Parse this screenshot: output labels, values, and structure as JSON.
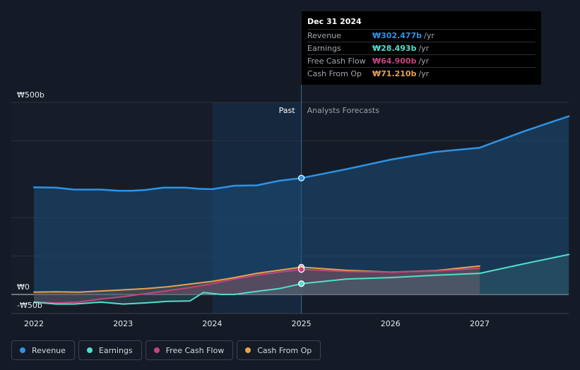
{
  "tooltip": {
    "date": "Dec 31 2024",
    "rows": [
      {
        "label": "Revenue",
        "value": "₩302.477b",
        "unit": "/yr"
      },
      {
        "label": "Earnings",
        "value": "₩28.493b",
        "unit": "/yr"
      },
      {
        "label": "Free Cash Flow",
        "value": "₩64.900b",
        "unit": "/yr"
      },
      {
        "label": "Cash From Op",
        "value": "₩71.210b",
        "unit": "/yr"
      }
    ]
  },
  "labels": {
    "past": "Past",
    "forecast": "Analysts Forecasts"
  },
  "legend": [
    {
      "label": "Revenue"
    },
    {
      "label": "Earnings"
    },
    {
      "label": "Free Cash Flow"
    },
    {
      "label": "Cash From Op"
    }
  ],
  "chart_data": {
    "type": "line",
    "ylim": [
      -50,
      500
    ],
    "xlim": [
      2021.8,
      2028.0
    ],
    "y_ticks": [
      {
        "value": 500,
        "label": "₩500b"
      },
      {
        "value": 0,
        "label": "₩0"
      },
      {
        "value": -50,
        "label": "-₩50b"
      }
    ],
    "x_ticks": [
      {
        "value": 2022,
        "label": "2022"
      },
      {
        "value": 2023,
        "label": "2023"
      },
      {
        "value": 2024,
        "label": "2024"
      },
      {
        "value": 2025,
        "label": "2025"
      },
      {
        "value": 2026,
        "label": "2026"
      },
      {
        "value": 2027,
        "label": "2027"
      }
    ],
    "past_end": 2025.0,
    "highlight_start": 2024.0,
    "colors": {
      "Revenue": "#2e93e6",
      "Earnings": "#4fe0cc",
      "Free Cash Flow": "#c2457e",
      "Cash From Op": "#e8a24c"
    },
    "series": [
      {
        "name": "Revenue",
        "x": [
          2022.0,
          2022.25,
          2022.45,
          2022.75,
          2022.95,
          2023.1,
          2023.25,
          2023.45,
          2023.7,
          2023.85,
          2024.0,
          2024.25,
          2024.5,
          2024.75,
          2025.0,
          2025.5,
          2026.0,
          2026.5,
          2027.0,
          2027.5,
          2028.0
        ],
        "y": [
          279,
          278,
          273,
          273,
          270,
          270,
          272,
          278,
          278,
          275,
          274,
          283,
          284,
          296,
          303,
          326,
          351,
          371,
          382,
          425,
          464
        ]
      },
      {
        "name": "Earnings",
        "x": [
          2022.0,
          2022.25,
          2022.45,
          2022.75,
          2023.0,
          2023.25,
          2023.5,
          2023.75,
          2023.9,
          2024.1,
          2024.25,
          2024.5,
          2024.75,
          2025.0,
          2025.5,
          2026.0,
          2026.5,
          2027.0,
          2027.5,
          2028.0
        ],
        "y": [
          -20,
          -25,
          -25,
          -20,
          -25,
          -22,
          -18,
          -17,
          5,
          0,
          0,
          8,
          15,
          28,
          40,
          44,
          50,
          55,
          80,
          104
        ]
      },
      {
        "name": "Free Cash Flow",
        "x": [
          2022.0,
          2022.25,
          2022.5,
          2022.75,
          2023.0,
          2023.25,
          2023.5,
          2023.75,
          2024.0,
          2024.25,
          2024.5,
          2024.75,
          2025.0,
          2025.5,
          2026.0,
          2026.5,
          2027.0
        ],
        "y": [
          -20,
          -22,
          -20,
          -12,
          -6,
          2,
          10,
          18,
          28,
          40,
          50,
          58,
          65,
          60,
          58,
          61,
          68
        ]
      },
      {
        "name": "Cash From Op",
        "x": [
          2022.0,
          2022.25,
          2022.5,
          2022.75,
          2023.0,
          2023.25,
          2023.5,
          2023.75,
          2024.0,
          2024.25,
          2024.5,
          2024.75,
          2025.0,
          2025.5,
          2026.0,
          2026.5,
          2027.0
        ],
        "y": [
          6,
          7,
          6,
          9,
          12,
          15,
          20,
          27,
          34,
          44,
          55,
          63,
          71,
          63,
          58,
          62,
          74
        ]
      }
    ]
  }
}
